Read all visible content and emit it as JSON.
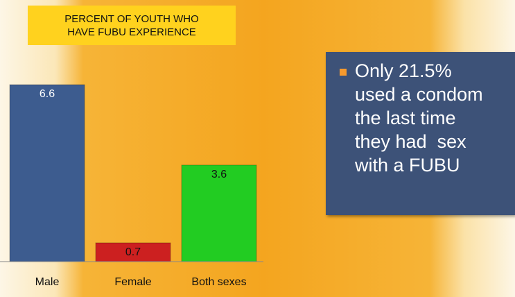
{
  "chart_data": {
    "type": "bar",
    "title": "PERCENT OF YOUTH WHO HAVE FUBU EXPERIENCE",
    "categories": [
      "Male",
      "Female",
      "Both sexes"
    ],
    "values": [
      6.6,
      0.7,
      3.6
    ],
    "colors": [
      "#3d5c8f",
      "#cc2020",
      "#22cc22"
    ]
  },
  "note": {
    "lines": [
      "Only 21.5%",
      "used a condom",
      "the last time",
      "they had  sex",
      "with a FUBU"
    ]
  }
}
